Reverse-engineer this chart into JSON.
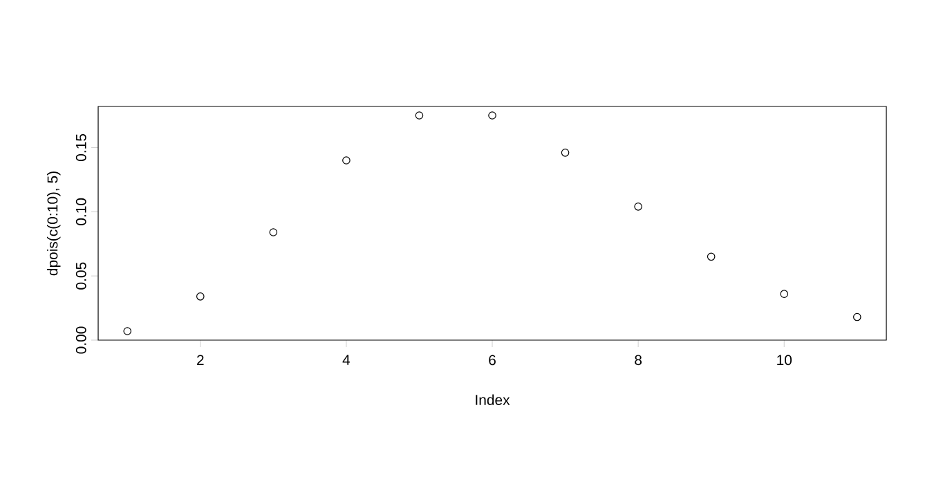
{
  "chart_data": {
    "type": "scatter",
    "xlabel": "Index",
    "ylabel": "dpois(c(0:10), 5)",
    "x": [
      1,
      2,
      3,
      4,
      5,
      6,
      7,
      8,
      9,
      10,
      11
    ],
    "values": [
      0.007,
      0.034,
      0.084,
      0.14,
      0.175,
      0.175,
      0.146,
      0.104,
      0.065,
      0.036,
      0.018
    ],
    "color": "#000000",
    "marker": "circle",
    "xlim": [
      0.6,
      11.4
    ],
    "ylim": [
      0.0,
      0.182
    ],
    "xticks": [
      2,
      4,
      6,
      8,
      10
    ],
    "yticks": [
      {
        "value": 0.0,
        "label": "0.00"
      },
      {
        "value": 0.05,
        "label": "0.05"
      },
      {
        "value": 0.1,
        "label": "0.10"
      },
      {
        "value": 0.15,
        "label": "0.15"
      }
    ],
    "grid": false
  }
}
